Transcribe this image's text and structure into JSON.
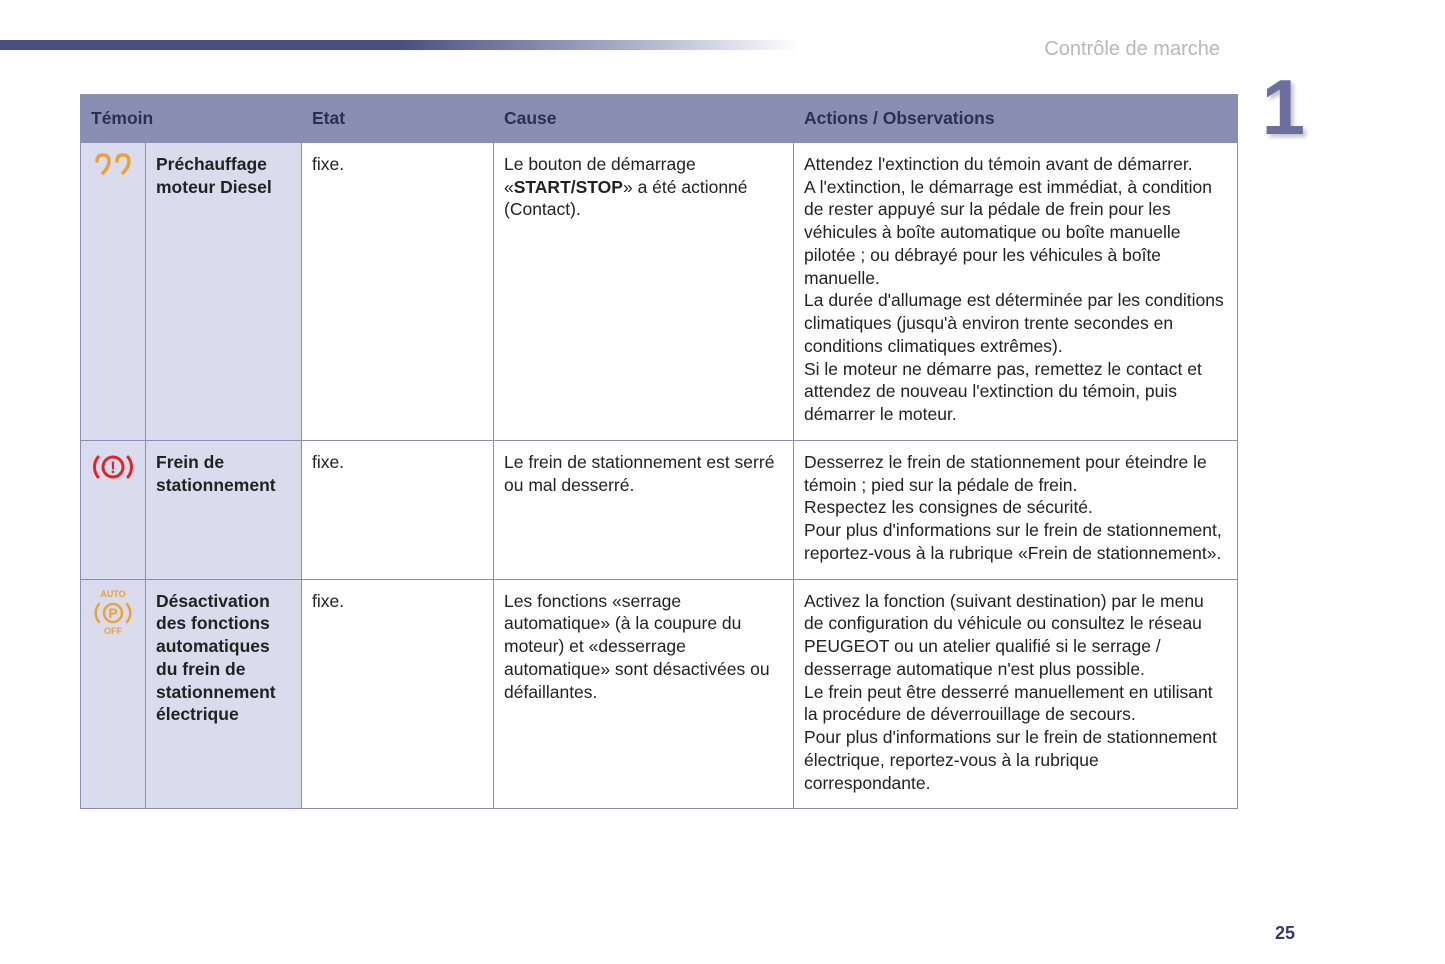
{
  "section_title": "Contrôle de marche",
  "chapter_number": "1",
  "page_number": "25",
  "colors": {
    "header_bg": "#8a8eb5",
    "header_text": "#2c2f54",
    "zebra_bg": "#dadced",
    "border": "#8a8eb5",
    "icon_amber": "#e8a23a",
    "icon_red": "#e02529",
    "chapter_color": "#6a6f9e"
  },
  "headers": {
    "temoin": "Témoin",
    "etat": "Etat",
    "cause": "Cause",
    "actions": "Actions / Observations"
  },
  "rows": [
    {
      "icon": "preheating",
      "label": "Préchauffage moteur Diesel",
      "etat": "fixe.",
      "cause_pre": "Le bouton de démarrage «",
      "cause_bold": "START/STOP",
      "cause_post": "» a été actionné (Contact).",
      "actions": "Attendez l'extinction du témoin avant de démarrer.\nA l'extinction, le démarrage est immédiat, à condition de rester appuyé sur la pédale de frein pour les véhicules à boîte automatique ou boîte manuelle pilotée ; ou débrayé pour les véhicules à boîte manuelle.\nLa durée d'allumage est déterminée par les conditions climatiques (jusqu'à environ trente secondes en conditions climatiques extrêmes).\nSi le moteur ne démarre pas, remettez le contact et attendez de nouveau l'extinction du témoin, puis démarrer le moteur."
    },
    {
      "icon": "parking-brake",
      "label": "Frein de stationnement",
      "etat": "fixe.",
      "cause": "Le frein de stationnement est serré ou mal desserré.",
      "actions": "Desserrez le frein de stationnement pour éteindre le témoin ; pied sur la pédale de frein.\nRespectez les consignes de sécurité.\nPour plus d'informations sur le frein de stationnement, reportez-vous à la rubrique «Frein de stationnement»."
    },
    {
      "icon": "auto-off",
      "auto_top": "AUTO",
      "auto_bottom": "OFF",
      "label": "Désactivation des fonctions automatiques du frein de stationnement électrique",
      "etat": "fixe.",
      "cause": "Les fonctions «serrage automatique» (à la coupure du moteur) et «desserrage automatique» sont désactivées ou défaillantes.",
      "actions": "Activez la fonction (suivant destination) par le menu de configuration du véhicule ou consultez le réseau PEUGEOT ou un atelier qualifié si le serrage / desserrage automatique n'est plus possible.\nLe frein peut être desserré manuellement en utilisant la procédure de déverrouillage de secours.\nPour plus d'informations sur le frein de stationnement électrique, reportez-vous à la rubrique correspondante."
    }
  ]
}
